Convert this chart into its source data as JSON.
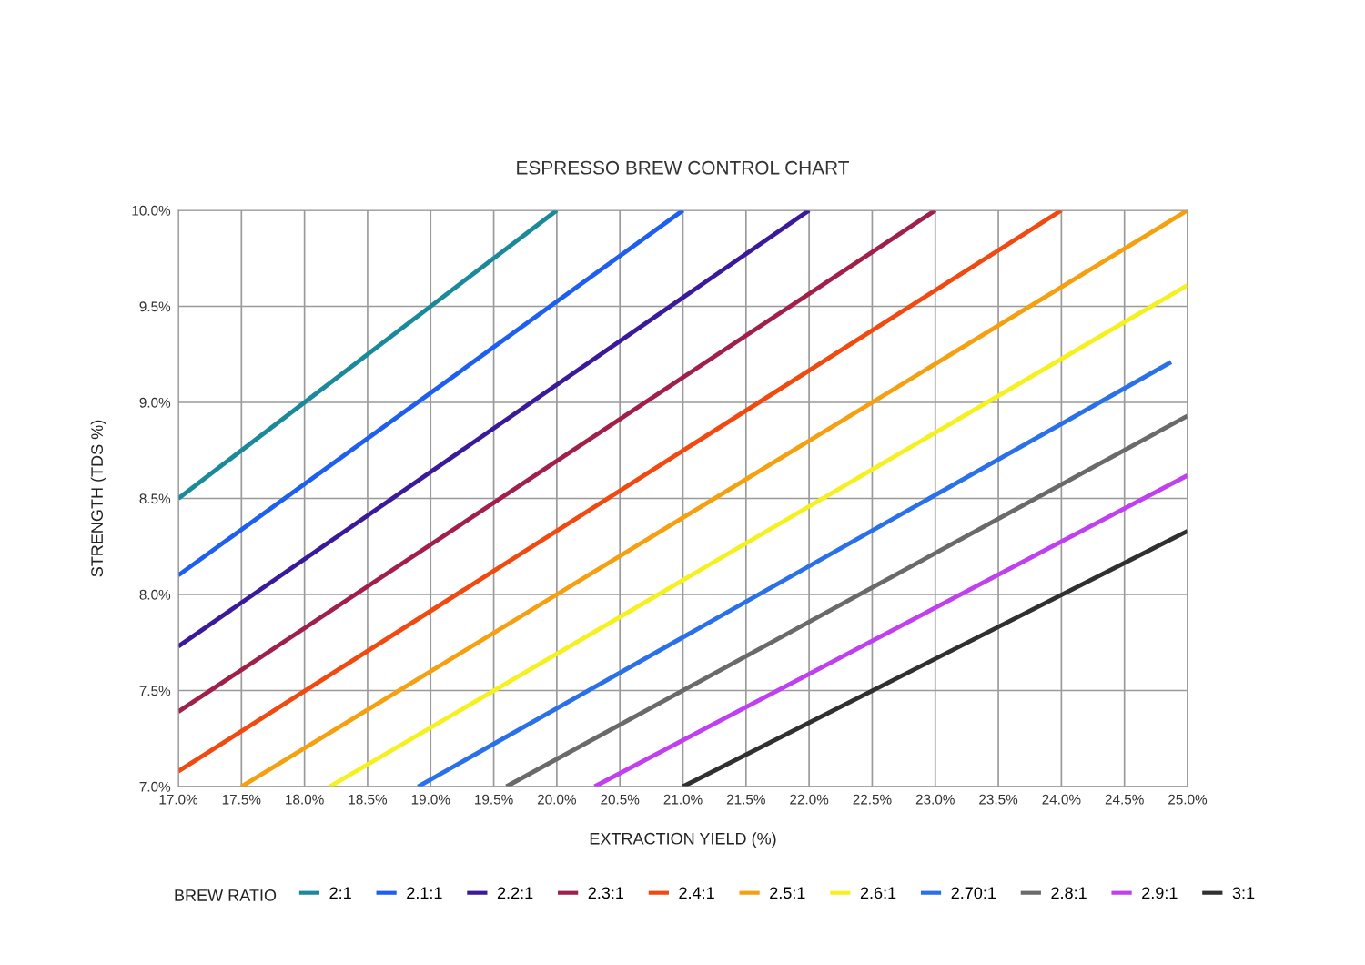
{
  "chart_data": {
    "type": "line",
    "title": "ESPRESSO BREW CONTROL CHART",
    "xlabel": "EXTRACTION YIELD (%)",
    "ylabel": "STRENGTH (TDS %)",
    "legend_title": "BREW RATIO",
    "legend": "bottom",
    "grid": true,
    "marker": "none",
    "line_style": "solid",
    "xlim": [
      17,
      25
    ],
    "ylim": [
      7,
      10
    ],
    "xticks": [
      {
        "value": 17,
        "label": "17.0%"
      },
      {
        "value": 17.5,
        "label": "17.5%"
      },
      {
        "value": 18,
        "label": "18.0%"
      },
      {
        "value": 18.5,
        "label": "18.5%"
      },
      {
        "value": 19,
        "label": "19.0%"
      },
      {
        "value": 19.5,
        "label": "19.5%"
      },
      {
        "value": 20,
        "label": "20.0%"
      },
      {
        "value": 20.5,
        "label": "20.5%"
      },
      {
        "value": 21,
        "label": "21.0%"
      },
      {
        "value": 21.5,
        "label": "21.5%"
      },
      {
        "value": 22,
        "label": "22.0%"
      },
      {
        "value": 22.5,
        "label": "22.5%"
      },
      {
        "value": 23,
        "label": "23.0%"
      },
      {
        "value": 23.5,
        "label": "23.5%"
      },
      {
        "value": 24,
        "label": "24.0%"
      },
      {
        "value": 24.5,
        "label": "24.5%"
      },
      {
        "value": 25,
        "label": "25.0%"
      }
    ],
    "yticks": [
      {
        "value": 7,
        "label": "7.0%"
      },
      {
        "value": 7.5,
        "label": "7.5%"
      },
      {
        "value": 8,
        "label": "8.0%"
      },
      {
        "value": 8.5,
        "label": "8.5%"
      },
      {
        "value": 9,
        "label": "9.0%"
      },
      {
        "value": 9.5,
        "label": "9.5%"
      },
      {
        "value": 10,
        "label": "10.0%"
      }
    ],
    "series": [
      {
        "name": "2:1",
        "color": "#1a8a9a",
        "x": [
          17,
          20
        ],
        "values": [
          8.5,
          10
        ]
      },
      {
        "name": "2.1:1",
        "color": "#1f5ff0",
        "x": [
          17,
          21
        ],
        "values": [
          8.1,
          10
        ]
      },
      {
        "name": "2.2:1",
        "color": "#3a1a9a",
        "x": [
          17,
          22
        ],
        "values": [
          7.73,
          10
        ]
      },
      {
        "name": "2.3:1",
        "color": "#a0204a",
        "x": [
          17,
          23
        ],
        "values": [
          7.39,
          10
        ]
      },
      {
        "name": "2.4:1",
        "color": "#f04a10",
        "x": [
          17,
          24
        ],
        "values": [
          7.08,
          10
        ]
      },
      {
        "name": "2.5:1",
        "color": "#f5a010",
        "x": [
          17.5,
          25
        ],
        "values": [
          7,
          10
        ]
      },
      {
        "name": "2.6:1",
        "color": "#f5f020",
        "x": [
          18.2,
          25
        ],
        "values": [
          7,
          9.61
        ]
      },
      {
        "name": "2.70:1",
        "color": "#2a70e8",
        "x": [
          18.9,
          24.87
        ],
        "values": [
          7,
          9.21
        ]
      },
      {
        "name": "2.8:1",
        "color": "#6a6a6a",
        "x": [
          19.6,
          25
        ],
        "values": [
          7,
          8.93
        ]
      },
      {
        "name": "2.9:1",
        "color": "#c040f0",
        "x": [
          20.3,
          25
        ],
        "values": [
          7,
          8.62
        ]
      },
      {
        "name": "3:1",
        "color": "#303030",
        "x": [
          21,
          25
        ],
        "values": [
          7,
          8.33
        ]
      }
    ]
  }
}
